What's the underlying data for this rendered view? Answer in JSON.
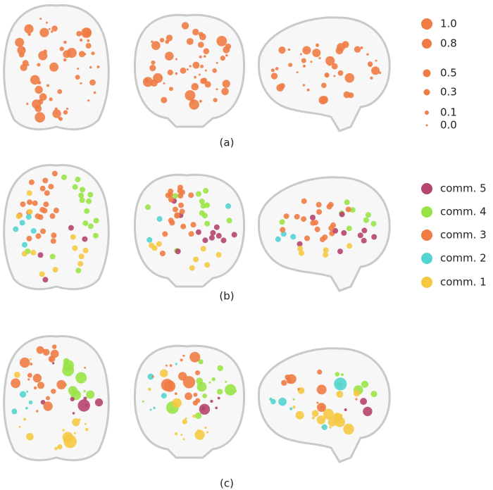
{
  "size_legend": [
    "1.0",
    "0.8",
    "0.5",
    "0.3",
    "0.1",
    "0.0"
  ],
  "community_legend": [
    "comm. 5",
    "comm. 4",
    "comm. 3",
    "comm. 2",
    "comm. 1"
  ],
  "panels": [
    "(a)",
    "(b)",
    "(c)"
  ]
}
